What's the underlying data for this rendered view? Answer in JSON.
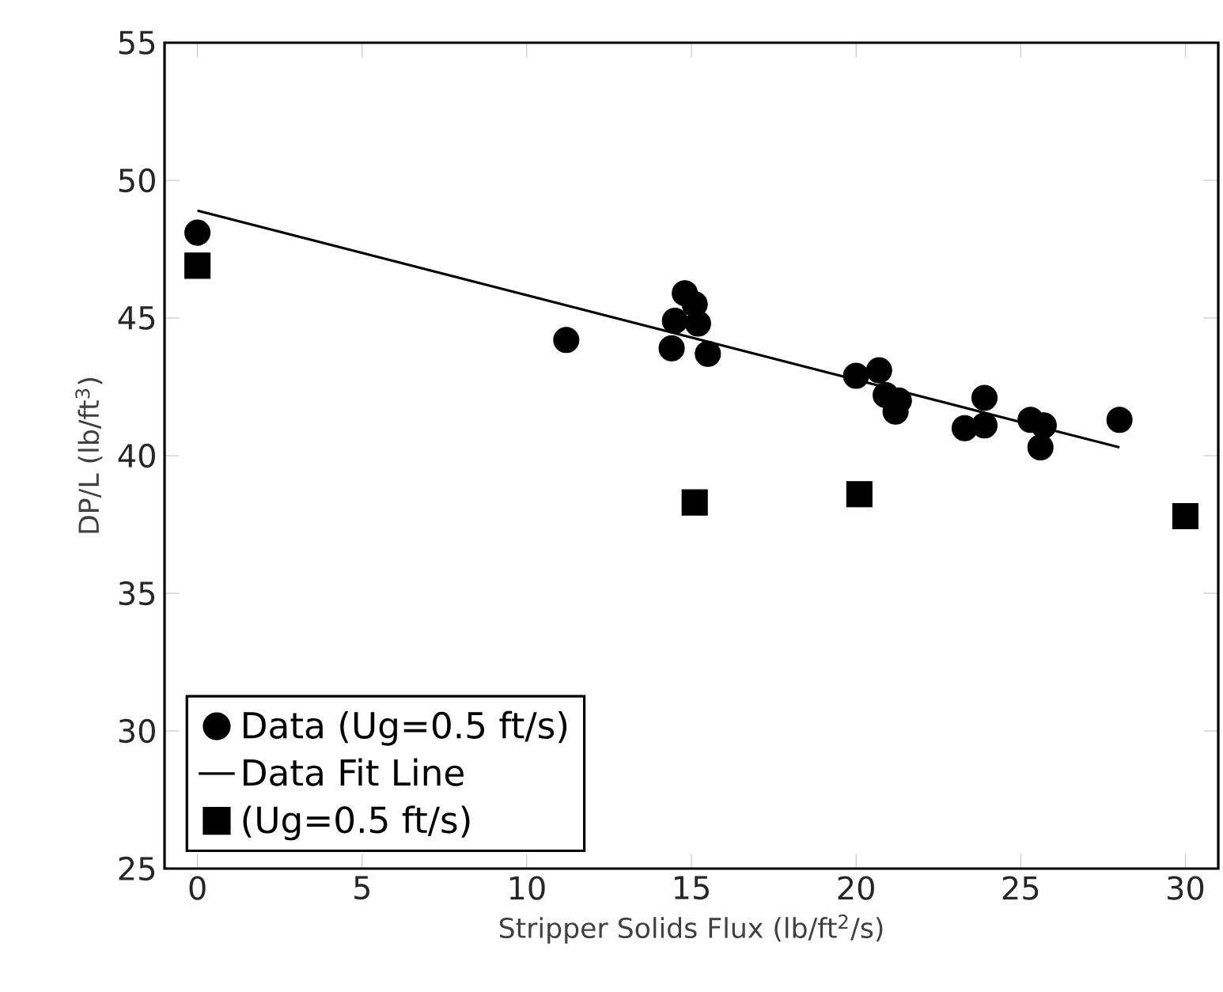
{
  "chart_data": {
    "type": "scatter",
    "xlabel": "Stripper Solids Flux (lb/ft$^{2}$/s)",
    "ylabel": "DP/L (lb/ft$^{3}$)",
    "xlim": [
      -1,
      31
    ],
    "ylim": [
      25,
      55
    ],
    "xticks": [
      0,
      5,
      10,
      15,
      20,
      25,
      30
    ],
    "yticks": [
      25,
      30,
      35,
      40,
      45,
      50,
      55
    ],
    "grid": false,
    "legend": "bottom left",
    "series": [
      {
        "name": "Data (Ug=0.5 ft/s)",
        "marker": "circle",
        "color": "#000000",
        "x": [
          0,
          11.2,
          14.5,
          14.8,
          15.1,
          14.5,
          15.2,
          14.4,
          15.5,
          20.0,
          20.7,
          20.9,
          21.3,
          21.2,
          23.9,
          23.3,
          23.9,
          25.3,
          25.7,
          25.6,
          28.0
        ],
        "values": [
          48.1,
          44.2,
          null,
          45.9,
          45.5,
          44.9,
          44.8,
          43.9,
          43.7,
          42.9,
          43.1,
          42.2,
          42.0,
          41.6,
          42.1,
          41.0,
          41.1,
          41.3,
          41.1,
          40.3,
          41.3
        ]
      },
      {
        "name": "Data Fit Line",
        "type": "line",
        "marker": "none",
        "color": "#000000",
        "x": [
          0,
          28.0
        ],
        "values": [
          48.9,
          40.3
        ]
      },
      {
        "name": "(Ug=0.5 ft/s)",
        "marker": "square",
        "color": "#000000",
        "x": [
          0,
          15.1,
          20.1,
          30
        ],
        "values": [
          46.9,
          38.3,
          38.6,
          37.8
        ]
      }
    ]
  }
}
